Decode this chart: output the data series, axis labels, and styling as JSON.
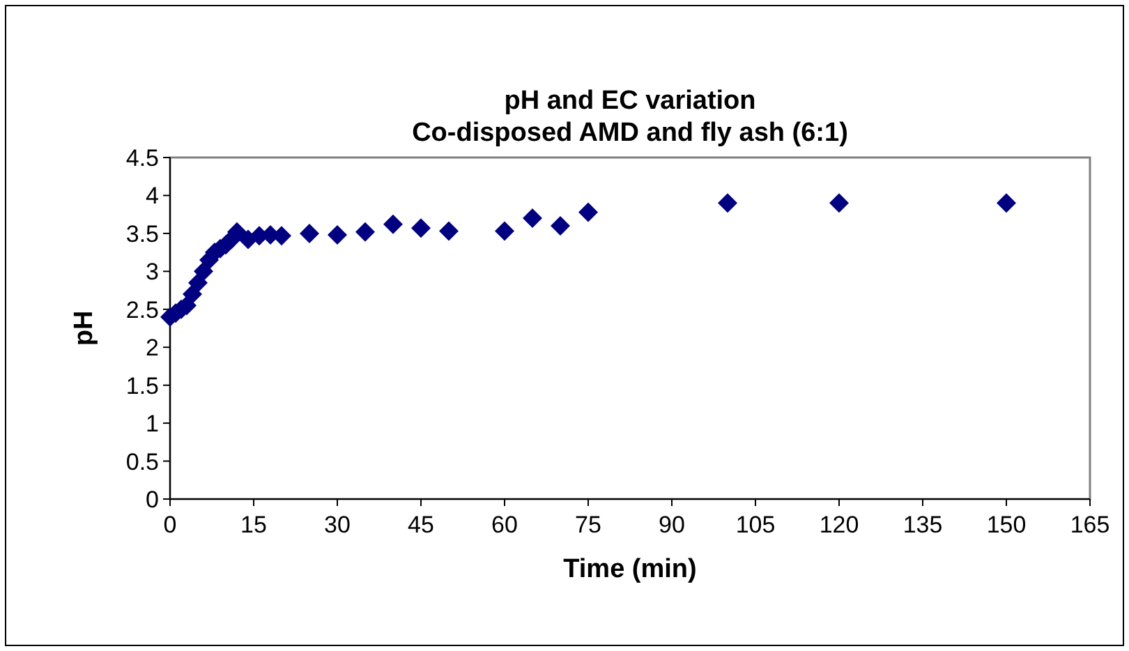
{
  "chart_data": {
    "type": "scatter",
    "title": "pH and EC variation\nCo-disposed AMD and fly ash (6:1)",
    "xlabel": "Time (min)",
    "ylabel": "pH",
    "x": [
      0,
      1,
      2,
      3,
      4,
      5,
      6,
      7,
      8,
      9,
      10,
      11,
      12,
      14,
      16,
      18,
      20,
      25,
      30,
      35,
      40,
      45,
      50,
      60,
      65,
      70,
      75,
      100,
      120,
      150
    ],
    "series": [
      {
        "color": "#000080",
        "values": [
          2.4,
          2.45,
          2.5,
          2.55,
          2.7,
          2.85,
          3.0,
          3.15,
          3.25,
          3.3,
          3.35,
          3.42,
          3.52,
          3.42,
          3.47,
          3.48,
          3.47,
          3.5,
          3.48,
          3.52,
          3.62,
          3.57,
          3.53,
          3.53,
          3.7,
          3.6,
          3.78,
          3.9,
          3.9,
          3.9
        ]
      }
    ],
    "xlim": [
      0,
      165
    ],
    "xticks": [
      0,
      15,
      30,
      45,
      60,
      75,
      90,
      105,
      120,
      135,
      150,
      165
    ],
    "ylim": [
      0,
      4.5
    ],
    "yticks": [
      0,
      0.5,
      1,
      1.5,
      2,
      2.5,
      3,
      3.5,
      4,
      4.5
    ],
    "marker": "diamond",
    "grid": false
  }
}
